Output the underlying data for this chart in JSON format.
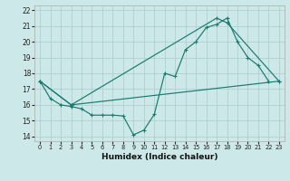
{
  "xlabel": "Humidex (Indice chaleur)",
  "bg_color": "#cce8e8",
  "grid_color": "#aacccc",
  "line_color": "#1a7a6e",
  "xlim": [
    -0.5,
    23.5
  ],
  "ylim": [
    13.7,
    22.3
  ],
  "xticks": [
    0,
    1,
    2,
    3,
    4,
    5,
    6,
    7,
    8,
    9,
    10,
    11,
    12,
    13,
    14,
    15,
    16,
    17,
    18,
    19,
    20,
    21,
    22,
    23
  ],
  "yticks": [
    14,
    15,
    16,
    17,
    18,
    19,
    20,
    21,
    22
  ],
  "line1_x": [
    0,
    1,
    2,
    3,
    4,
    5,
    6,
    7,
    8,
    9,
    10,
    11,
    12,
    13,
    14,
    15,
    16,
    17,
    18,
    19,
    20,
    21,
    22
  ],
  "line1_y": [
    17.5,
    16.4,
    16.0,
    15.9,
    15.75,
    15.35,
    15.35,
    15.35,
    15.3,
    14.1,
    14.4,
    15.4,
    18.0,
    17.8,
    19.5,
    20.0,
    20.9,
    21.1,
    21.5,
    20.0,
    19.0,
    18.5,
    17.5
  ],
  "line2_x": [
    0,
    3,
    23
  ],
  "line2_y": [
    17.5,
    16.0,
    17.5
  ],
  "line3_x": [
    0,
    3,
    17,
    18,
    23
  ],
  "line3_y": [
    17.5,
    16.0,
    21.5,
    21.2,
    17.5
  ]
}
